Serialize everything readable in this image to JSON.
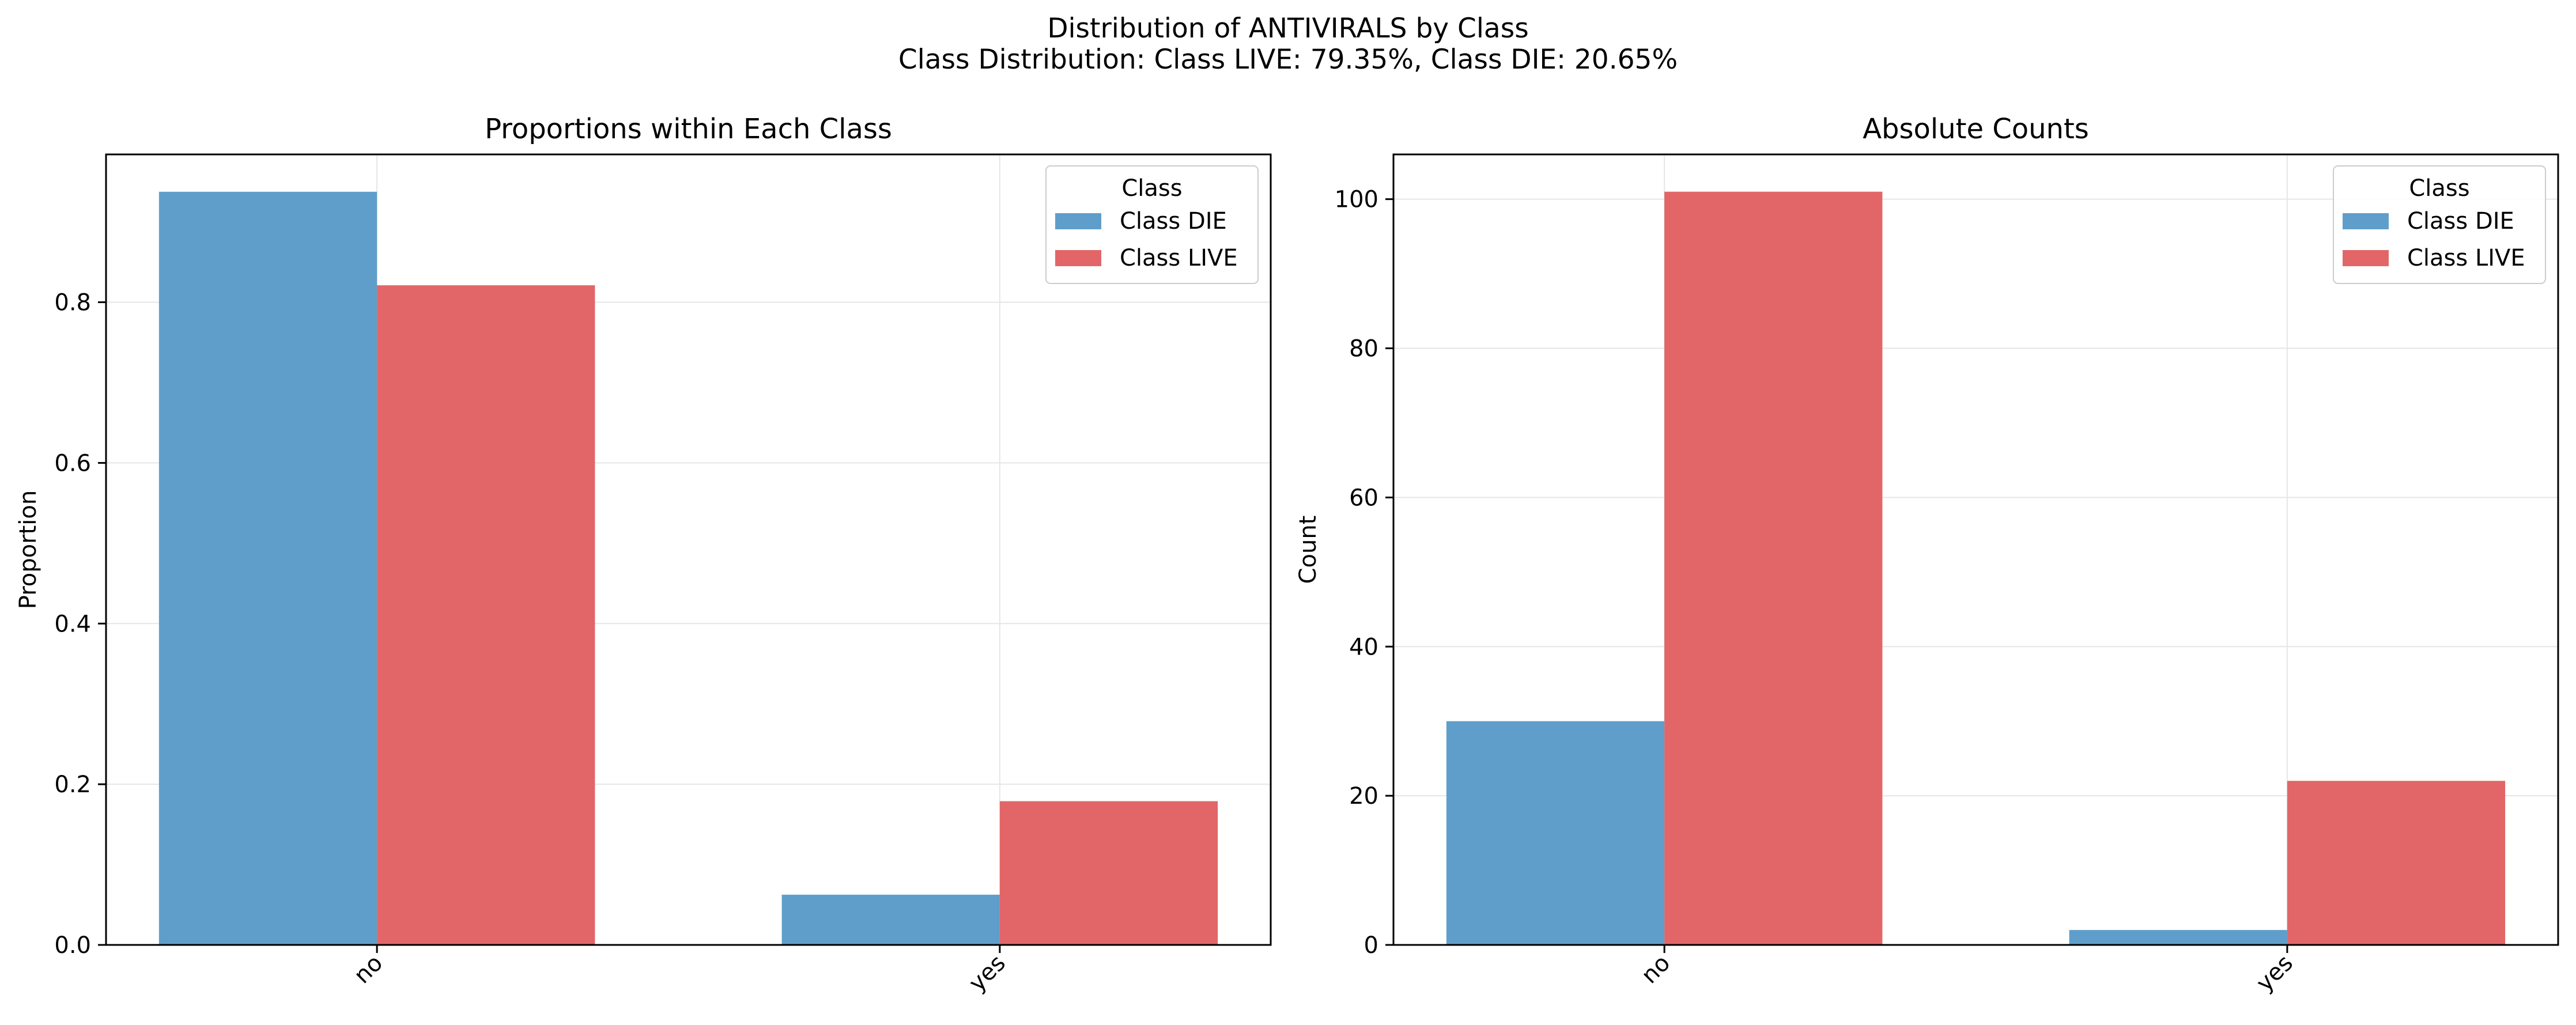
{
  "figure": {
    "title": "Distribution of ANTIVIRALS by Class",
    "subtitle": "Class Distribution: Class LIVE: 79.35%, Class DIE: 20.65%"
  },
  "colors": {
    "die": "#5f9ecb",
    "live": "#e26667",
    "grid": "#e6e6e6",
    "axis": "#000000"
  },
  "chart_data": [
    {
      "type": "bar",
      "title": "Proportions within Each Class",
      "xlabel": "",
      "ylabel": "Proportion",
      "categories": [
        "no",
        "yes"
      ],
      "series": [
        {
          "name": "Class DIE",
          "values": [
            0.9375,
            0.0625
          ]
        },
        {
          "name": "Class LIVE",
          "values": [
            0.8211,
            0.1789
          ]
        }
      ],
      "ylim": [
        0,
        0.984
      ],
      "yticks": [
        0.0,
        0.2,
        0.4,
        0.6,
        0.8
      ],
      "ytick_labels": [
        "0.0",
        "0.2",
        "0.4",
        "0.6",
        "0.8"
      ],
      "legend": {
        "title": "Class",
        "position": "top-right"
      },
      "grid": true
    },
    {
      "type": "bar",
      "title": "Absolute Counts",
      "xlabel": "",
      "ylabel": "Count",
      "categories": [
        "no",
        "yes"
      ],
      "series": [
        {
          "name": "Class DIE",
          "values": [
            30,
            2
          ]
        },
        {
          "name": "Class LIVE",
          "values": [
            101,
            22
          ]
        }
      ],
      "ylim": [
        0,
        106
      ],
      "yticks": [
        0,
        20,
        40,
        60,
        80,
        100
      ],
      "ytick_labels": [
        "0",
        "20",
        "40",
        "60",
        "80",
        "100"
      ],
      "legend": {
        "title": "Class",
        "position": "top-right"
      },
      "grid": true
    }
  ]
}
